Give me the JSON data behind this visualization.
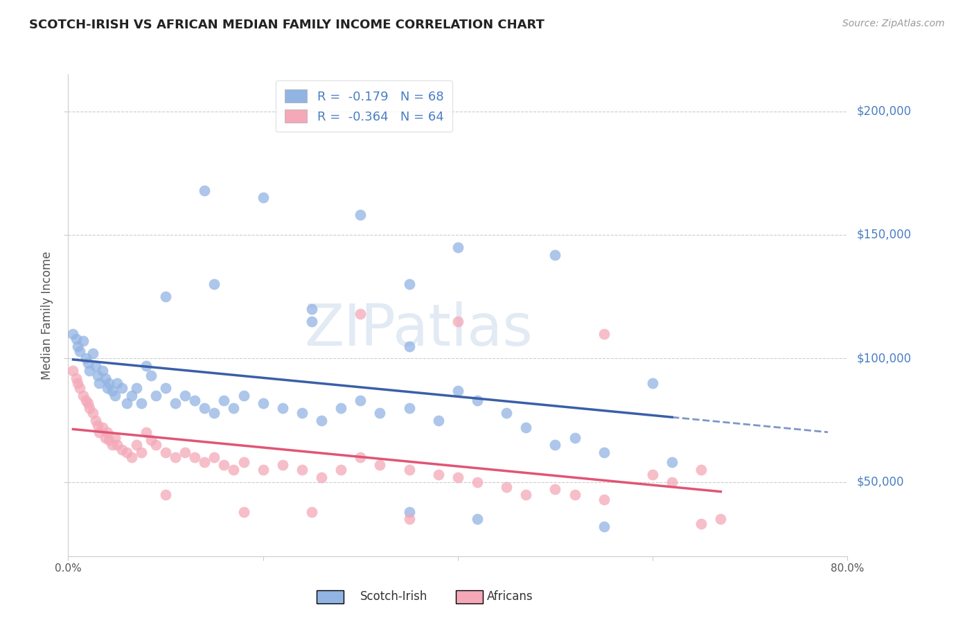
{
  "title": "SCOTCH-IRISH VS AFRICAN MEDIAN FAMILY INCOME CORRELATION CHART",
  "source": "Source: ZipAtlas.com",
  "ylabel": "Median Family Income",
  "yticks": [
    50000,
    100000,
    150000,
    200000
  ],
  "ytick_labels": [
    "$50,000",
    "$100,000",
    "$150,000",
    "$200,000"
  ],
  "xlim": [
    0.0,
    0.8
  ],
  "ylim": [
    20000,
    215000
  ],
  "legend_r1": "R =  -0.179   N = 68",
  "legend_r2": "R =  -0.364   N = 64",
  "legend_label1": "Scotch-Irish",
  "legend_label2": "Africans",
  "scotch_irish_color": "#92b4e3",
  "african_color": "#f4a8b8",
  "scotch_irish_line_color": "#3a5fa8",
  "african_line_color": "#e05575",
  "bg_color": "#ffffff",
  "right_tick_color": "#4a7ec2",
  "title_color": "#222222",
  "source_color": "#999999",
  "watermark_color": "#cfdcee",
  "scotch_irish_x": [
    0.005,
    0.008,
    0.01,
    0.012,
    0.015,
    0.018,
    0.02,
    0.022,
    0.025,
    0.028,
    0.03,
    0.032,
    0.035,
    0.038,
    0.04,
    0.042,
    0.045,
    0.048,
    0.05,
    0.055,
    0.06,
    0.065,
    0.07,
    0.075,
    0.08,
    0.085,
    0.09,
    0.1,
    0.11,
    0.12,
    0.13,
    0.14,
    0.15,
    0.16,
    0.17,
    0.18,
    0.2,
    0.22,
    0.24,
    0.26,
    0.28,
    0.3,
    0.32,
    0.35,
    0.38,
    0.4,
    0.42,
    0.45,
    0.47,
    0.5,
    0.52,
    0.55,
    0.14,
    0.2,
    0.3,
    0.1,
    0.4,
    0.5,
    0.25,
    0.35,
    0.15,
    0.25,
    0.35,
    0.6,
    0.62,
    0.35,
    0.42,
    0.55
  ],
  "scotch_irish_y": [
    110000,
    108000,
    105000,
    103000,
    107000,
    100000,
    98000,
    95000,
    102000,
    97000,
    93000,
    90000,
    95000,
    92000,
    88000,
    90000,
    87000,
    85000,
    90000,
    88000,
    82000,
    85000,
    88000,
    82000,
    97000,
    93000,
    85000,
    88000,
    82000,
    85000,
    83000,
    80000,
    78000,
    83000,
    80000,
    85000,
    82000,
    80000,
    78000,
    75000,
    80000,
    83000,
    78000,
    80000,
    75000,
    87000,
    83000,
    78000,
    72000,
    65000,
    68000,
    62000,
    168000,
    165000,
    158000,
    125000,
    145000,
    142000,
    115000,
    130000,
    130000,
    120000,
    105000,
    90000,
    58000,
    38000,
    35000,
    32000
  ],
  "african_x": [
    0.005,
    0.008,
    0.01,
    0.012,
    0.015,
    0.018,
    0.02,
    0.022,
    0.025,
    0.028,
    0.03,
    0.032,
    0.035,
    0.038,
    0.04,
    0.042,
    0.045,
    0.048,
    0.05,
    0.055,
    0.06,
    0.065,
    0.07,
    0.075,
    0.08,
    0.085,
    0.09,
    0.1,
    0.11,
    0.12,
    0.13,
    0.14,
    0.15,
    0.16,
    0.17,
    0.18,
    0.2,
    0.22,
    0.24,
    0.26,
    0.28,
    0.3,
    0.32,
    0.35,
    0.38,
    0.4,
    0.42,
    0.45,
    0.47,
    0.5,
    0.52,
    0.55,
    0.3,
    0.4,
    0.55,
    0.25,
    0.35,
    0.6,
    0.62,
    0.65,
    0.65,
    0.67,
    0.1,
    0.18
  ],
  "african_y": [
    95000,
    92000,
    90000,
    88000,
    85000,
    83000,
    82000,
    80000,
    78000,
    75000,
    73000,
    70000,
    72000,
    68000,
    70000,
    67000,
    65000,
    68000,
    65000,
    63000,
    62000,
    60000,
    65000,
    62000,
    70000,
    67000,
    65000,
    62000,
    60000,
    62000,
    60000,
    58000,
    60000,
    57000,
    55000,
    58000,
    55000,
    57000,
    55000,
    52000,
    55000,
    60000,
    57000,
    55000,
    53000,
    52000,
    50000,
    48000,
    45000,
    47000,
    45000,
    43000,
    118000,
    115000,
    110000,
    38000,
    35000,
    53000,
    50000,
    55000,
    33000,
    35000,
    45000,
    38000
  ]
}
